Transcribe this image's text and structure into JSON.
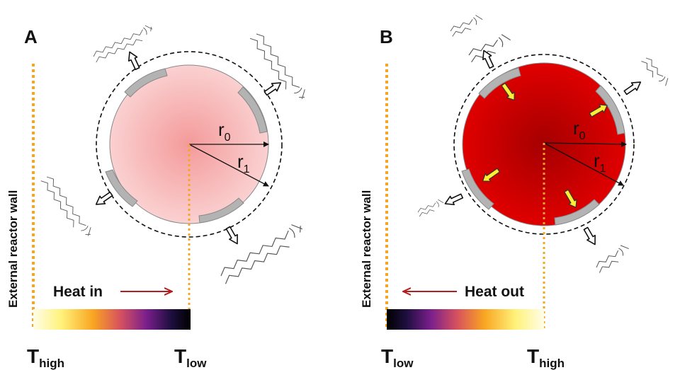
{
  "colors": {
    "wall_dotted": "#f5a623",
    "heat_arrow": "#b01e1e",
    "particle_a_center": "#f49a9a",
    "particle_a_edge": "#fbd6d6",
    "particle_b_center": "#a50000",
    "particle_b_edge": "#e60000",
    "ligand_patch": "#b3b3b3",
    "yellow_arrow": "#ffee33"
  },
  "panel_a": {
    "letter": "A",
    "wall_label": "External reactor wall",
    "heat_label": "Heat in",
    "heat_direction": "right",
    "r0_base": "r",
    "r0_sub": "0",
    "r1_base": "r",
    "r1_sub": "1",
    "t_left_base": "T",
    "t_left_sub": "high",
    "t_right_base": "T",
    "t_right_sub": "low",
    "gradient": "hot-to-cold"
  },
  "panel_b": {
    "letter": "B",
    "wall_label": "External reactor wall",
    "heat_label": "Heat out",
    "heat_direction": "left",
    "r0_base": "r",
    "r0_sub": "0",
    "r1_base": "r",
    "r1_sub": "1",
    "t_left_base": "T",
    "t_left_sub": "low",
    "t_right_base": "T",
    "t_right_sub": "high",
    "gradient": "cold-to-hot"
  }
}
